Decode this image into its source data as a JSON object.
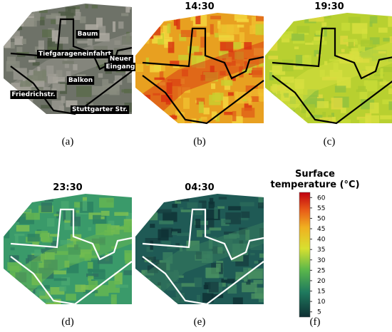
{
  "panels": [
    {
      "caption": "(a)",
      "style": "aerial",
      "line": "#000",
      "labels": [
        "Baum",
        "Tiefgarageneinfahrt",
        "Neuer",
        "Eingang",
        "Balkon",
        "Friedrichstr.",
        "Stuttgarter Str."
      ]
    },
    {
      "caption": "(b)",
      "title": "14:30",
      "style": "hot",
      "line": "#000"
    },
    {
      "caption": "(c)",
      "title": "19:30",
      "style": "warm",
      "line": "#000"
    },
    {
      "caption": "(d)",
      "title": "23:30",
      "style": "mild",
      "line": "#fff"
    },
    {
      "caption": "(e)",
      "title": "04:30",
      "style": "cool",
      "line": "#fff"
    }
  ],
  "colorbar": {
    "title": [
      "Surface",
      "temperature (°C)"
    ],
    "caption": "(f)",
    "clim": [
      2.5,
      62.5
    ],
    "ticks": [
      5,
      10,
      15,
      20,
      25,
      30,
      35,
      40,
      45,
      50,
      55,
      60
    ]
  }
}
